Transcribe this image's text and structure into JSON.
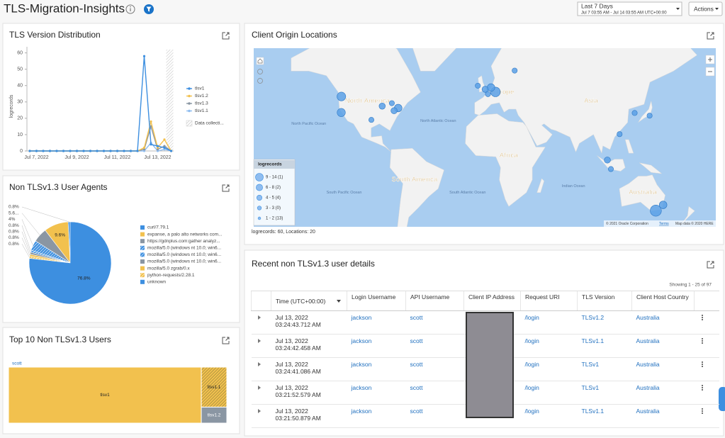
{
  "header": {
    "title": "TLS-Migration-Insights",
    "time_range": "Last 7 Days",
    "time_span": "Jul 7 03:55 AM - Jul 14 03:55 AM UTC+00:00",
    "actions": "Actions"
  },
  "chart_data": [
    {
      "type": "line",
      "title": "TLS Version Distribution",
      "y_label": "logrecords",
      "categories": [
        null,
        "Jul 7, 2022",
        null,
        null,
        null,
        null,
        null,
        "Jul 9, 2022",
        null,
        null,
        null,
        null,
        null,
        "Jul 11, 2022",
        null,
        null,
        null,
        null,
        null,
        "Jul 13, 2022",
        null,
        null
      ],
      "series": [
        {
          "name": "tlsv1",
          "color": "#3d8fe0",
          "values": [
            0,
            0,
            0,
            0,
            0,
            0,
            0,
            0,
            0,
            0,
            0,
            0,
            0,
            0,
            0,
            0,
            0,
            58,
            4,
            3,
            2,
            0
          ]
        },
        {
          "name": "tlsv1.2",
          "color": "#f2c14e",
          "values": [
            0,
            0,
            0,
            0,
            0,
            0,
            0,
            0,
            0,
            0,
            0,
            0,
            0,
            0,
            0,
            0,
            0,
            2,
            18,
            2,
            7,
            0
          ]
        },
        {
          "name": "tlsv1.3",
          "color": "#8a96a3",
          "values": [
            0,
            0,
            0,
            0,
            0,
            0,
            0,
            0,
            0,
            0,
            0,
            0,
            0,
            0,
            0,
            0,
            0,
            1,
            15,
            1,
            3,
            0
          ]
        },
        {
          "name": "tlsv1.1",
          "color": "#8fbdf0",
          "values": [
            0,
            0,
            0,
            0,
            0,
            0,
            0,
            0,
            0,
            0,
            0,
            0,
            0,
            0,
            0,
            0,
            0,
            0,
            5,
            0,
            1,
            0
          ]
        }
      ],
      "data_collection_label": "Data collecti...",
      "ylim": [
        0,
        62
      ],
      "yticks": [
        0,
        10,
        20,
        30,
        40,
        50,
        60
      ],
      "grid": false
    },
    {
      "type": "pie",
      "title": "Non TLSv1.3 User Agents",
      "categories": [
        "curl/7.79.1",
        "expanse, a palo alto networks com...",
        "https://gdnplus.com:gather analyz...",
        "mozilla/5.0 (windows nt 10.0; win6...",
        "mozilla/5.0 (windows nt 10.0; win6...",
        "mozilla/5.0 (windows nt 10.0; win6...",
        "mozilla/5.0 zgrab/0.x",
        "python-requests/2.28.1",
        "unknown"
      ],
      "values": [
        0.8,
        9.6,
        5.6,
        4,
        0.8,
        0.8,
        0.8,
        0.8,
        76.8
      ],
      "value_labels": [
        "0.8%",
        "9.6%",
        "5.6...",
        "4%",
        "0.8%",
        "0.8%",
        "0.8%",
        "0.8%",
        "76.8%"
      ],
      "colors": [
        "#3d8fe0",
        "#f2c14e",
        "#8a96a3",
        "#3d8fe0",
        "#3d8fe0",
        "#8a96a3",
        "#f2c14e",
        "#f2c14e",
        "#3d8fe0"
      ],
      "hatched": [
        false,
        false,
        false,
        true,
        true,
        false,
        false,
        true,
        false
      ]
    },
    {
      "type": "treemap",
      "title": "Top 10 Non TLSv1.3 Users",
      "group": "scott",
      "categories": [
        "tlsv1",
        "tlsv1.1",
        "tlsv1.2"
      ],
      "values": [
        53,
        5,
        2
      ],
      "colors": [
        "#f2c14e",
        "#f2c14e",
        "#8a96a3"
      ],
      "hatched": [
        false,
        true,
        false
      ]
    }
  ],
  "map": {
    "title": "Client Origin Locations",
    "regions": [
      "North America",
      "Europe",
      "Asia",
      "Africa",
      "South America",
      "Australia",
      "North Pacific Ocean",
      "North Atlantic Ocean",
      "South Pacific Ocean",
      "South Atlantic Ocean",
      "Indian Ocean"
    ],
    "legend_title": "logrecords",
    "legend_bins": [
      "9 - 14 (1)",
      "6 - 8 (2)",
      "4 - 5 (4)",
      "3 - 3 (0)",
      "1 - 2 (13)"
    ],
    "points": [
      {
        "lon": -122.4,
        "lat": 37.8,
        "logrecords": 5
      },
      {
        "lon": -122.3,
        "lat": 47.6,
        "logrecords": 6
      },
      {
        "lon": -87.6,
        "lat": 41.9,
        "logrecords": 2
      },
      {
        "lon": -74,
        "lat": 40.7,
        "logrecords": 4
      },
      {
        "lon": -77.5,
        "lat": 39,
        "logrecords": 2
      },
      {
        "lon": 8.7,
        "lat": 50.1,
        "logrecords": 8
      },
      {
        "lon": 4.9,
        "lat": 52.4,
        "logrecords": 4
      },
      {
        "lon": -0.1,
        "lat": 51.5,
        "logrecords": 2
      },
      {
        "lon": -6.3,
        "lat": 53.3,
        "logrecords": 1
      },
      {
        "lon": 2.3,
        "lat": 48.9,
        "logrecords": 1
      },
      {
        "lon": 25,
        "lat": 60.2,
        "logrecords": 1
      },
      {
        "lon": 139.7,
        "lat": 35.7,
        "logrecords": 1
      },
      {
        "lon": 114.2,
        "lat": 22.3,
        "logrecords": 1
      },
      {
        "lon": 103.8,
        "lat": 1.3,
        "logrecords": 2
      },
      {
        "lon": 106.8,
        "lat": -6.2,
        "logrecords": 1
      },
      {
        "lon": 145,
        "lat": -37.8,
        "logrecords": 12
      },
      {
        "lon": 151.2,
        "lat": -33.9,
        "logrecords": 4
      },
      {
        "lon": -79.4,
        "lat": 43.7,
        "logrecords": 1
      },
      {
        "lon": -96.8,
        "lat": 32.8,
        "logrecords": 1
      },
      {
        "lon": 127,
        "lat": 37.5,
        "logrecords": 1
      }
    ],
    "summary": "logrecords: 60, Locations: 20",
    "attribution": [
      "© 2021 Oracle Corporation",
      "Terms",
      "Map data © 2020 HERE"
    ]
  },
  "table": {
    "title": "Recent non TLSv1.3 user details",
    "showing": "Showing 1 - 25 of 97",
    "columns": [
      "Time (UTC+00:00)",
      "Login Username",
      "API Username",
      "Client IP Address",
      "Request URI",
      "TLS Version",
      "Client Host Country"
    ],
    "rows": [
      {
        "date": "Jul 13, 2022",
        "time": "03:24:43.712 AM",
        "login": "jackson",
        "api": "scott",
        "uri": "/login",
        "tls": "TLSv1.2",
        "country": "Australia"
      },
      {
        "date": "Jul 13, 2022",
        "time": "03:24:42.458 AM",
        "login": "jackson",
        "api": "scott",
        "uri": "/login",
        "tls": "TLSv1.1",
        "country": "Australia"
      },
      {
        "date": "Jul 13, 2022",
        "time": "03:24:41.086 AM",
        "login": "jackson",
        "api": "scott",
        "uri": "/login",
        "tls": "TLSv1",
        "country": "Australia"
      },
      {
        "date": "Jul 13, 2022",
        "time": "03:21:52.579 AM",
        "login": "jackson",
        "api": "scott",
        "uri": "/login",
        "tls": "TLSv1",
        "country": "Australia"
      },
      {
        "date": "Jul 13, 2022",
        "time": "03:21:50.879 AM",
        "login": "jackson",
        "api": "scott",
        "uri": "/login",
        "tls": "TLSv1.1",
        "country": "Australia"
      }
    ]
  }
}
